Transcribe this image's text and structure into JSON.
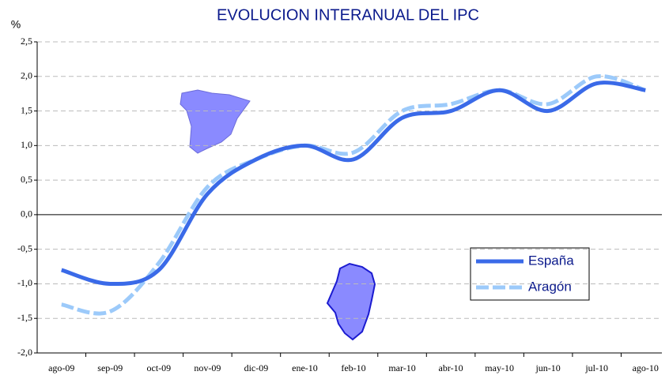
{
  "chart_data": {
    "type": "line",
    "title": "EVOLUCION INTERANUAL DEL IPC",
    "y_label": "%",
    "categories": [
      "ago-09",
      "sep-09",
      "oct-09",
      "nov-09",
      "dic-09",
      "ene-10",
      "feb-10",
      "mar-10",
      "abr-10",
      "may-10",
      "jun-10",
      "jul-10",
      "ago-10"
    ],
    "series": [
      {
        "name": "España",
        "color": "#3a6ae8",
        "values": [
          -0.8,
          -1.0,
          -0.8,
          0.3,
          0.8,
          1.0,
          0.8,
          1.4,
          1.5,
          1.8,
          1.5,
          1.9,
          1.8
        ]
      },
      {
        "name": "Aragón",
        "color": "#9ccafa",
        "values": [
          -1.3,
          -1.4,
          -0.7,
          0.4,
          0.8,
          1.0,
          0.9,
          1.5,
          1.6,
          1.8,
          1.6,
          2.0,
          1.8
        ]
      }
    ],
    "ylim": [
      -2.0,
      2.5
    ],
    "yticks": [
      {
        "value": -2.0,
        "label": "-2,0"
      },
      {
        "value": -1.5,
        "label": "-1,5"
      },
      {
        "value": -1.0,
        "label": "-1,0"
      },
      {
        "value": -0.5,
        "label": "-0,5"
      },
      {
        "value": 0,
        "label": "0,0"
      },
      {
        "value": 0.5,
        "label": "0,5"
      },
      {
        "value": 1.0,
        "label": "1,0"
      },
      {
        "value": 1.5,
        "label": "1,5"
      },
      {
        "value": 2.0,
        "label": "2,0"
      },
      {
        "value": 2.5,
        "label": "2,5"
      }
    ],
    "grid": true,
    "legend": "lower right"
  }
}
